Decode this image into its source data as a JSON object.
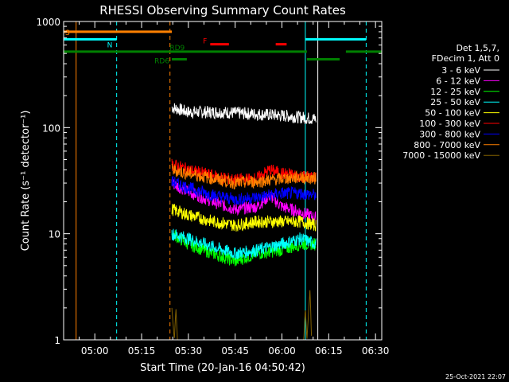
{
  "chart_data": {
    "type": "line",
    "title": "RHESSI Observing Summary Count Rates",
    "xlabel": "Start Time (20-Jan-16 04:50:42)",
    "ylabel": "Count Rate (s⁻¹ detector⁻¹)",
    "ylog": true,
    "ylim": [
      1,
      1000
    ],
    "xlim_minutes_after_0450": [
      0,
      102
    ],
    "x_ticks": [
      {
        "t": 10,
        "label": "05:00"
      },
      {
        "t": 25,
        "label": "05:15"
      },
      {
        "t": 40,
        "label": "05:30"
      },
      {
        "t": 55,
        "label": "05:45"
      },
      {
        "t": 70,
        "label": "06:00"
      },
      {
        "t": 85,
        "label": "06:15"
      },
      {
        "t": 100,
        "label": "06:30"
      }
    ],
    "y_ticks": [
      {
        "v": 1,
        "label": "1"
      },
      {
        "v": 10,
        "label": "10"
      },
      {
        "v": 100,
        "label": "100"
      },
      {
        "v": 1000,
        "label": "1000"
      }
    ],
    "legend_header": [
      "Det 1,5,7,",
      "FDecim 1, Att 0"
    ],
    "series": [
      {
        "name": "3 - 6 keV",
        "color": "#ffffff",
        "points": [
          [
            34.7,
            155
          ],
          [
            40,
            140
          ],
          [
            50,
            140
          ],
          [
            60,
            135
          ],
          [
            70,
            130
          ],
          [
            76,
            125
          ],
          [
            81,
            120
          ]
        ]
      },
      {
        "name": "6 - 12 keV",
        "color": "#ff00ff",
        "points": [
          [
            34.7,
            30
          ],
          [
            40,
            25
          ],
          [
            48,
            20
          ],
          [
            55,
            17
          ],
          [
            62,
            18
          ],
          [
            66,
            23
          ],
          [
            70,
            18
          ],
          [
            76,
            16
          ],
          [
            81,
            14
          ]
        ]
      },
      {
        "name": "12 - 25 keV",
        "color": "#00ff00",
        "points": [
          [
            34.7,
            10
          ],
          [
            40,
            8
          ],
          [
            48,
            6.5
          ],
          [
            55,
            5.5
          ],
          [
            62,
            6.5
          ],
          [
            70,
            7
          ],
          [
            76,
            8
          ],
          [
            81,
            8
          ]
        ]
      },
      {
        "name": "25 - 50 keV",
        "color": "#00ffff",
        "points": [
          [
            34.7,
            10
          ],
          [
            40,
            9
          ],
          [
            48,
            7.5
          ],
          [
            55,
            6.5
          ],
          [
            62,
            7
          ],
          [
            70,
            8
          ],
          [
            76,
            9
          ],
          [
            81,
            8
          ]
        ]
      },
      {
        "name": "50 - 100 keV",
        "color": "#ffff00",
        "points": [
          [
            34.7,
            17
          ],
          [
            40,
            15
          ],
          [
            48,
            13
          ],
          [
            55,
            12
          ],
          [
            62,
            13
          ],
          [
            70,
            13
          ],
          [
            76,
            13
          ],
          [
            81,
            12
          ]
        ]
      },
      {
        "name": "100 - 300 keV",
        "color": "#ff0000",
        "points": [
          [
            34.7,
            45
          ],
          [
            40,
            40
          ],
          [
            48,
            35
          ],
          [
            55,
            32
          ],
          [
            62,
            33
          ],
          [
            66,
            40
          ],
          [
            70,
            37
          ],
          [
            76,
            35
          ],
          [
            81,
            34
          ]
        ]
      },
      {
        "name": "300 - 800 keV",
        "color": "#0000ff",
        "points": [
          [
            34.7,
            31
          ],
          [
            40,
            27
          ],
          [
            48,
            23
          ],
          [
            55,
            21
          ],
          [
            62,
            22
          ],
          [
            70,
            24
          ],
          [
            76,
            24
          ],
          [
            81,
            23
          ]
        ]
      },
      {
        "name": "800 - 7000 keV",
        "color": "#ff8000",
        "points": [
          [
            34.7,
            40
          ],
          [
            40,
            37
          ],
          [
            48,
            33
          ],
          [
            55,
            30
          ],
          [
            62,
            31
          ],
          [
            70,
            33
          ],
          [
            76,
            34
          ],
          [
            81,
            33
          ]
        ]
      },
      {
        "name": "7000 - 15000 keV",
        "color": "#806000",
        "points": [
          [
            34.7,
            2
          ],
          [
            35.5,
            1
          ],
          [
            36,
            2
          ],
          [
            36.5,
            1
          ],
          [
            77,
            1
          ],
          [
            77.5,
            2
          ],
          [
            78,
            1
          ],
          [
            79,
            3
          ],
          [
            79.5,
            1
          ]
        ]
      }
    ],
    "flags": [
      {
        "label": "S",
        "color": "#ff8000",
        "level": 800,
        "segments": [
          [
            0,
            34.7
          ]
        ]
      },
      {
        "label": "N",
        "color": "#00ffff",
        "level": 680,
        "segments": [
          [
            0,
            17
          ],
          [
            77.5,
            97
          ]
        ]
      },
      {
        "label": "RD9",
        "color": "#008000",
        "level": 520,
        "segments": [
          [
            0,
            78
          ],
          [
            90.5,
            102
          ]
        ]
      },
      {
        "label": "RD6",
        "color": "#008000",
        "level": 440,
        "segments": [
          [
            34.7,
            39.5
          ],
          [
            78,
            88.5
          ]
        ]
      },
      {
        "label": "F",
        "color": "#ff0000",
        "level": 610,
        "segments": [
          [
            47,
            53
          ],
          [
            68,
            71.5
          ]
        ]
      }
    ],
    "vertical_markers": [
      {
        "t": 4,
        "color": "#ff8000",
        "style": "solid"
      },
      {
        "t": 17,
        "color": "#00ffff",
        "style": "dashed"
      },
      {
        "t": 34.1,
        "color": "#ff8000",
        "style": "dashed"
      },
      {
        "t": 77.5,
        "color": "#00ffff",
        "style": "solid"
      },
      {
        "t": 81.5,
        "color": "#ffffff",
        "style": "solid"
      },
      {
        "t": 97,
        "color": "#00ffff",
        "style": "dashed"
      }
    ],
    "footer_date": "25-Oct-2021 22:07"
  }
}
